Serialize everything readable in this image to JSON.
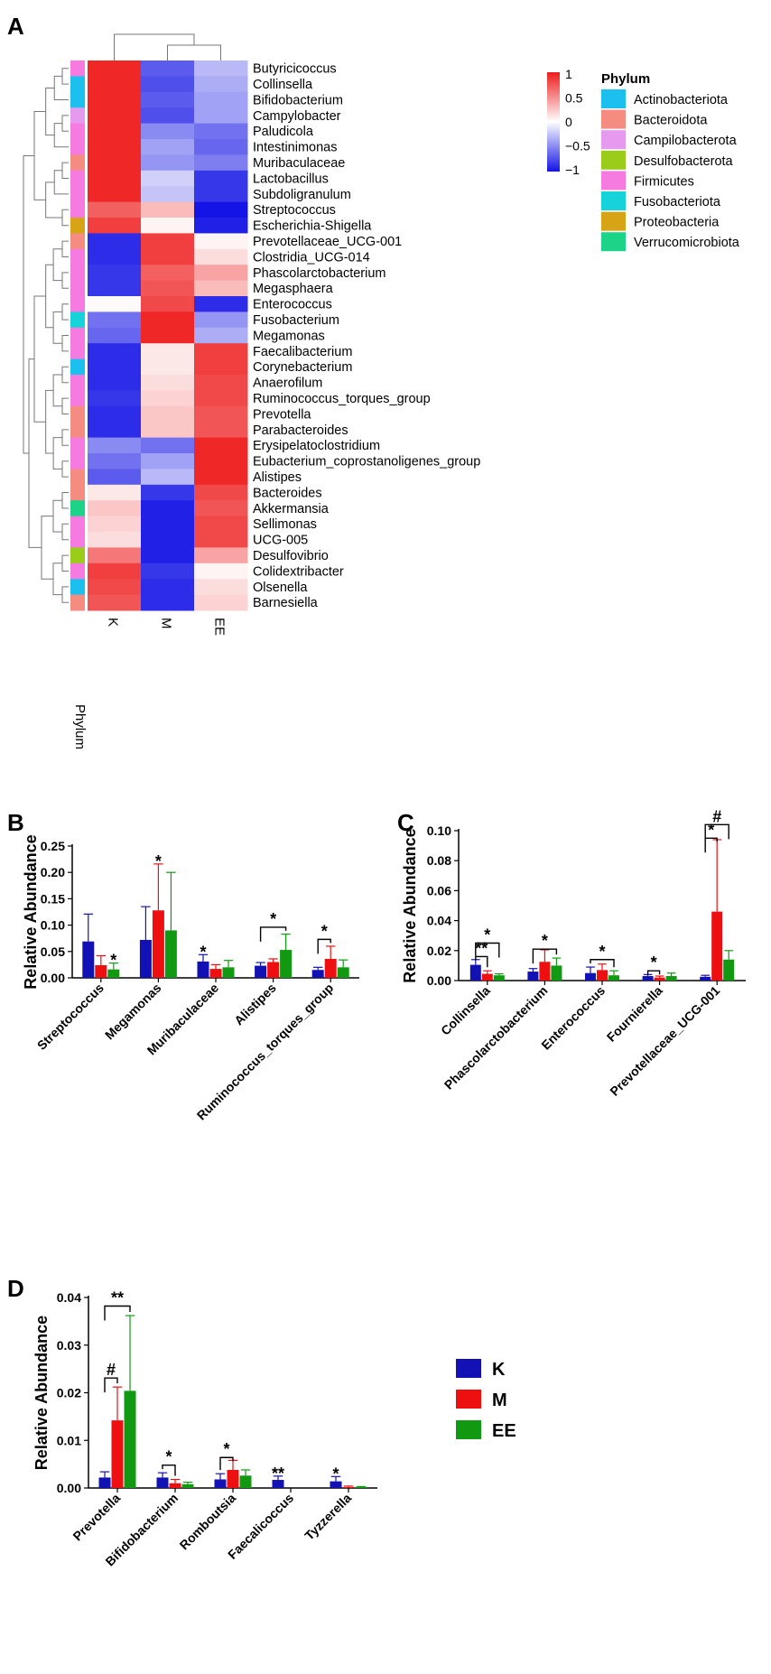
{
  "panels": {
    "a": "A",
    "b": "B",
    "c": "C",
    "d": "D"
  },
  "heatmap": {
    "genera": [
      "Butyricicoccus",
      "Collinsella",
      "Bifidobacterium",
      "Campylobacter",
      "Paludicola",
      "Intestinimonas",
      "Muribaculaceae",
      "Lactobacillus",
      "Subdoligranulum",
      "Streptococcus",
      "Escherichia-Shigella",
      "Prevotellaceae_UCG-001",
      "Clostridia_UCG-014",
      "Phascolarctobacterium",
      "Megasphaera",
      "Enterococcus",
      "Fusobacterium",
      "Megamonas",
      "Faecalibacterium",
      "Corynebacterium",
      "Anaerofilum",
      "Ruminococcus_torques_group",
      "Prevotella",
      "Parabacteroides",
      "Erysipelatoclostridium",
      "Eubacterium_coprostanoligenes_group",
      "Alistipes",
      "Bacteroides",
      "Akkermansia",
      "Sellimonas",
      "UCG-005",
      "Desulfovibrio",
      "Colidextribacter",
      "Olsenella",
      "Barnesiella"
    ],
    "groups": [
      "K",
      "M",
      "EE"
    ],
    "values": [
      [
        0.95,
        -0.7,
        -0.3
      ],
      [
        0.95,
        -0.75,
        -0.35
      ],
      [
        0.95,
        -0.7,
        -0.4
      ],
      [
        0.95,
        -0.75,
        -0.4
      ],
      [
        0.95,
        -0.5,
        -0.6
      ],
      [
        0.95,
        -0.4,
        -0.65
      ],
      [
        0.95,
        -0.45,
        -0.55
      ],
      [
        0.95,
        -0.2,
        -0.85
      ],
      [
        0.95,
        -0.25,
        -0.85
      ],
      [
        0.7,
        0.3,
        -1.0
      ],
      [
        0.85,
        0.05,
        -0.95
      ],
      [
        -0.9,
        0.85,
        0.05
      ],
      [
        -0.9,
        0.85,
        0.15
      ],
      [
        -0.85,
        0.7,
        0.4
      ],
      [
        -0.85,
        0.75,
        0.3
      ],
      [
        0.02,
        0.8,
        -0.9
      ],
      [
        -0.6,
        0.95,
        -0.45
      ],
      [
        -0.65,
        0.95,
        -0.35
      ],
      [
        -0.9,
        0.1,
        0.85
      ],
      [
        -0.9,
        0.1,
        0.85
      ],
      [
        -0.9,
        0.15,
        0.8
      ],
      [
        -0.85,
        0.2,
        0.8
      ],
      [
        -0.9,
        0.25,
        0.75
      ],
      [
        -0.9,
        0.25,
        0.75
      ],
      [
        -0.5,
        -0.6,
        0.95
      ],
      [
        -0.6,
        -0.4,
        0.95
      ],
      [
        -0.7,
        -0.3,
        0.95
      ],
      [
        0.1,
        -0.85,
        0.8
      ],
      [
        0.25,
        -0.95,
        0.75
      ],
      [
        0.2,
        -0.95,
        0.8
      ],
      [
        0.15,
        -0.95,
        0.8
      ],
      [
        0.6,
        -0.95,
        0.4
      ],
      [
        0.85,
        -0.85,
        0.05
      ],
      [
        0.8,
        -0.9,
        0.15
      ],
      [
        0.75,
        -0.9,
        0.2
      ]
    ],
    "phylum_row": [
      "Firmicutes",
      "Actinobacteriota",
      "Actinobacteriota",
      "Campilobacterota",
      "Firmicutes",
      "Firmicutes",
      "Bacteroidota",
      "Firmicutes",
      "Firmicutes",
      "Firmicutes",
      "Proteobacteria",
      "Bacteroidota",
      "Firmicutes",
      "Firmicutes",
      "Firmicutes",
      "Firmicutes",
      "Fusobacteriota",
      "Firmicutes",
      "Firmicutes",
      "Actinobacteriota",
      "Firmicutes",
      "Firmicutes",
      "Bacteroidota",
      "Bacteroidota",
      "Firmicutes",
      "Firmicutes",
      "Bacteroidota",
      "Bacteroidota",
      "Verrucomicrobiota",
      "Firmicutes",
      "Firmicutes",
      "Desulfobacterota",
      "Firmicutes",
      "Actinobacteriota",
      "Bacteroidota"
    ],
    "phylum_axis_label": "Phylum",
    "colorbar_ticks": [
      "1",
      "0.5",
      "0",
      "−0.5",
      "−1"
    ],
    "colors": {
      "high": "#ee1c1c",
      "mid": "#ffffff",
      "low": "#1414e6"
    }
  },
  "legend": {
    "title": "Phylum",
    "items": [
      {
        "name": "Actinobacteriota",
        "color": "#1cc0ee"
      },
      {
        "name": "Bacteroidota",
        "color": "#f58c82"
      },
      {
        "name": "Campilobacterota",
        "color": "#e59af0"
      },
      {
        "name": "Desulfobacterota",
        "color": "#9acc1a"
      },
      {
        "name": "Firmicutes",
        "color": "#f67be0"
      },
      {
        "name": "Fusobacteriota",
        "color": "#16d3da"
      },
      {
        "name": "Proteobacteria",
        "color": "#d6a415"
      },
      {
        "name": "Verrucomicrobiota",
        "color": "#1cd488"
      }
    ]
  },
  "group_legend": {
    "items": [
      {
        "name": "K",
        "color": "#1212b4"
      },
      {
        "name": "M",
        "color": "#ee1010"
      },
      {
        "name": "EE",
        "color": "#119a11"
      }
    ]
  },
  "chart_data": [
    {
      "type": "bar",
      "panel": "B",
      "ylabel": "Relative Abundance",
      "ylim": [
        0,
        0.25
      ],
      "yticks": [
        "0.00",
        "0.05",
        "0.10",
        "0.15",
        "0.20",
        "0.25"
      ],
      "ytick_values": [
        0,
        0.05,
        0.1,
        0.15,
        0.2,
        0.25
      ],
      "categories": [
        "Streptococcus",
        "Megamonas",
        "Muribaculaceae",
        "Alistipes",
        "Ruminococcus_torques_group"
      ],
      "series": [
        {
          "name": "K",
          "values": [
            0.069,
            0.072,
            0.031,
            0.023,
            0.015
          ],
          "errors": [
            0.052,
            0.063,
            0.013,
            0.006,
            0.005
          ]
        },
        {
          "name": "M",
          "values": [
            0.024,
            0.128,
            0.017,
            0.03,
            0.036
          ],
          "errors": [
            0.018,
            0.088,
            0.008,
            0.006,
            0.024
          ]
        },
        {
          "name": "EE",
          "values": [
            0.016,
            0.09,
            0.02,
            0.053,
            0.02
          ],
          "errors": [
            0.012,
            0.11,
            0.013,
            0.03,
            0.014
          ]
        }
      ],
      "annotations": [
        {
          "label": "*",
          "cat": 0,
          "series": 2
        },
        {
          "label": "*",
          "cat": 1,
          "series": 1
        },
        {
          "label": "*",
          "cat": 2,
          "series": 0
        },
        {
          "label": "*",
          "bracket": [
            0,
            2
          ],
          "cat": 3,
          "y": 0.096
        },
        {
          "label": "*",
          "bracket": [
            0,
            1
          ],
          "cat": 4,
          "y": 0.073
        }
      ]
    },
    {
      "type": "bar",
      "panel": "C",
      "ylabel": "Relative Abundance",
      "ylim": [
        0,
        0.1
      ],
      "yticks": [
        "0.00",
        "0.02",
        "0.04",
        "0.06",
        "0.08",
        "0.10"
      ],
      "ytick_values": [
        0,
        0.02,
        0.04,
        0.06,
        0.08,
        0.1
      ],
      "categories": [
        "Collinsella",
        "Phascolarctobacterium",
        "Enterococcus",
        "Fournierella",
        "Prevotellaceae_UCG-001"
      ],
      "series": [
        {
          "name": "K",
          "values": [
            0.0105,
            0.006,
            0.005,
            0.003,
            0.0025
          ],
          "errors": [
            0.0035,
            0.002,
            0.004,
            0.001,
            0.001
          ]
        },
        {
          "name": "M",
          "values": [
            0.0045,
            0.0125,
            0.007,
            0.002,
            0.046
          ],
          "errors": [
            0.002,
            0.008,
            0.004,
            0.001,
            0.048
          ]
        },
        {
          "name": "EE",
          "values": [
            0.0035,
            0.01,
            0.0035,
            0.003,
            0.014
          ],
          "errors": [
            0.001,
            0.005,
            0.003,
            0.002,
            0.006
          ]
        }
      ],
      "annotations": [
        {
          "label": "**",
          "bracket": [
            0,
            1
          ],
          "cat": 0,
          "y": 0.016
        },
        {
          "label": "*",
          "bracket": [
            0,
            2
          ],
          "cat": 0,
          "y": 0.025
        },
        {
          "label": "*",
          "bracket": [
            0,
            2
          ],
          "cat": 1,
          "y": 0.021
        },
        {
          "label": "*",
          "bracket": [
            0,
            2
          ],
          "cat": 2,
          "y": 0.014
        },
        {
          "label": "*",
          "bracket": [
            0,
            1
          ],
          "cat": 3,
          "y": 0.0065
        },
        {
          "label": "*",
          "bracket": [
            0,
            1
          ],
          "cat": 4,
          "y": 0.095
        },
        {
          "label": "#",
          "bracket": [
            0,
            2
          ],
          "cat": 4,
          "y": 0.104
        }
      ]
    },
    {
      "type": "bar",
      "panel": "D",
      "ylabel": "Relative Abundance",
      "ylim": [
        0,
        0.04
      ],
      "yticks": [
        "0.00",
        "0.01",
        "0.02",
        "0.03",
        "0.04"
      ],
      "ytick_values": [
        0,
        0.01,
        0.02,
        0.03,
        0.04
      ],
      "categories": [
        "Prevotella",
        "Bifidobacterium",
        "Romboutsia",
        "Faecalicoccus",
        "Tyzzerella"
      ],
      "series": [
        {
          "name": "K",
          "values": [
            0.0022,
            0.0022,
            0.0018,
            0.0017,
            0.0014
          ],
          "errors": [
            0.0012,
            0.001,
            0.0012,
            0.0008,
            0.001
          ]
        },
        {
          "name": "M",
          "values": [
            0.0142,
            0.001,
            0.0038,
            0.0,
            0.0002
          ],
          "errors": [
            0.007,
            0.0008,
            0.002,
            0.0,
            0.0002
          ]
        },
        {
          "name": "EE",
          "values": [
            0.0204,
            0.0008,
            0.0026,
            0.0,
            0.0002
          ],
          "errors": [
            0.0158,
            0.0004,
            0.0012,
            0.0,
            0.0001
          ]
        }
      ],
      "annotations": [
        {
          "label": "#",
          "bracket": [
            0,
            1
          ],
          "cat": 0,
          "y": 0.0231
        },
        {
          "label": "**",
          "bracket": [
            0,
            2
          ],
          "cat": 0,
          "y": 0.0382
        },
        {
          "label": "*",
          "bracket": [
            0,
            1
          ],
          "cat": 1,
          "y": 0.0048
        },
        {
          "label": "*",
          "bracket": [
            0,
            1
          ],
          "cat": 2,
          "y": 0.0064
        },
        {
          "label": "**",
          "cat": 3,
          "series": 0
        },
        {
          "label": "*",
          "cat": 4,
          "series": 0
        }
      ]
    }
  ]
}
